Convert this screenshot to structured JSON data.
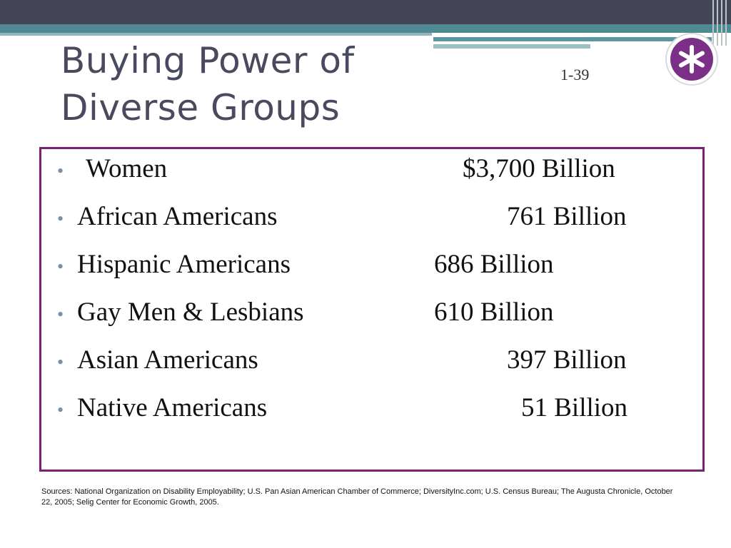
{
  "slide": {
    "title_line1": "Buying Power of",
    "title_line2": "Diverse Groups",
    "slide_number": "1-39",
    "badge_symbol": "asterisk-icon"
  },
  "items": [
    {
      "label": "Women",
      "value": "$3,700 Billion"
    },
    {
      "label": "African Americans",
      "value": "761 Billion"
    },
    {
      "label": "Hispanic Americans",
      "value": "686 Billion"
    },
    {
      "label": "Gay Men & Lesbians",
      "value": "610 Billion"
    },
    {
      "label": "Asian Americans",
      "value": "397 Billion"
    },
    {
      "label": "Native Americans",
      "value": "51 Billion"
    }
  ],
  "sources": "Sources: National Organization on Disability Employability; U.S. Pan Asian American Chamber of Commerce; DiversityInc.com; U.S. Census Bureau; The Augusta Chronicle, October 22, 2005; Selig Center for Economic Growth, 2005.",
  "colors": {
    "top_bar": "#444556",
    "teal": "#4f8a93",
    "title_text": "#4a4a5e",
    "box_border": "#7b2075",
    "badge_fill": "#7b2f87"
  }
}
